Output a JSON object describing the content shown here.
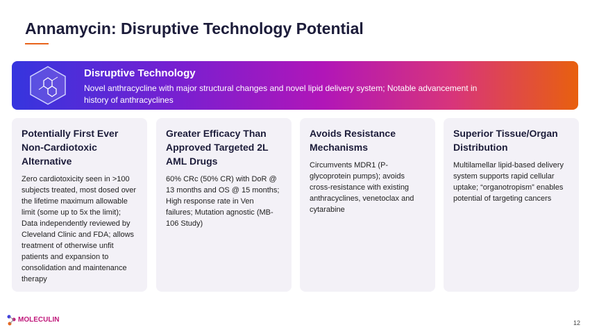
{
  "header": {
    "title": "Annamycin: Disruptive Technology Potential"
  },
  "banner": {
    "title": "Disruptive Technology",
    "text": "Novel anthracycline with major structural changes and novel lipid delivery system; Notable advancement in history of anthracyclines"
  },
  "cards": [
    {
      "title": "Potentially First Ever Non-Cardiotoxic Alternative",
      "text": "Zero cardiotoxicity seen in >100 subjects treated, most dosed over the lifetime maximum allowable limit (some up to 5x the limit); Data independently reviewed by Cleveland Clinic and FDA; allows treatment of otherwise unfit patients and expansion to consolidation and maintenance therapy"
    },
    {
      "title": "Greater Efficacy Than Approved Targeted 2L AML Drugs",
      "text": "60% CRc (50% CR) with DoR @ 13 months and OS @ 15 months; High response rate in Ven failures; Mutation agnostic (MB-106 Study)"
    },
    {
      "title": "Avoids Resistance Mechanisms",
      "text": "Circumvents MDR1 (P-glycoprotein pumps); avoids cross-resistance with existing anthracyclines, venetoclax and cytarabine"
    },
    {
      "title": "Superior Tissue/Organ Distribution",
      "text": "Multilamellar lipid-based delivery system supports rapid cellular uptake; “organotropism” enables potential of targeting cancers"
    }
  ],
  "footer": {
    "logo": "MOLECULIN",
    "page": "12"
  }
}
